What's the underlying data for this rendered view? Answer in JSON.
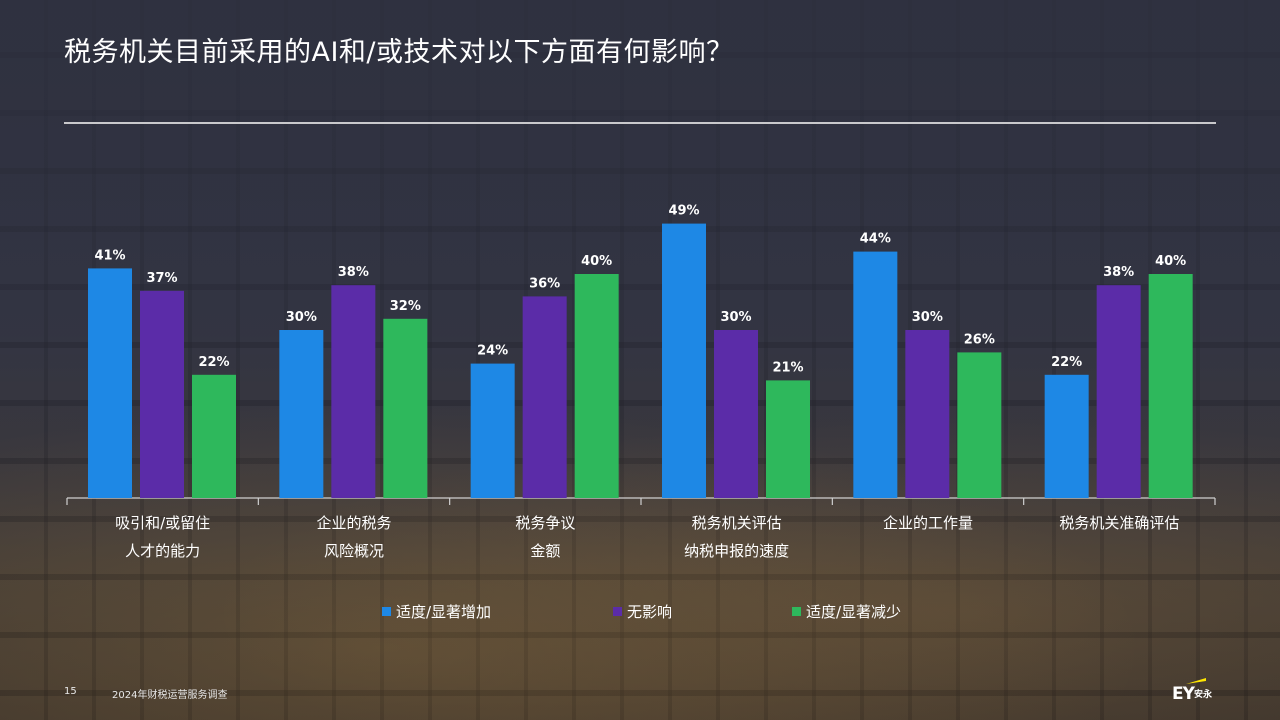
{
  "slide": {
    "title": "税务机关目前采用的AI和/或技术对以下方面有何影响？",
    "page_number": "15",
    "footer_text": "2024年财税运营服务调查",
    "logo_text": "EY",
    "logo_subtext": "安永"
  },
  "colors": {
    "increase": "#1e88e5",
    "no_effect": "#5b2ca8",
    "decrease": "#2eb85c",
    "logo_accent": "#ffe600"
  },
  "chart_data": {
    "type": "bar",
    "categories": [
      [
        "吸引和/或留住",
        "人才的能力"
      ],
      [
        "企业的税务",
        "风险概况"
      ],
      [
        "税务争议",
        "金额"
      ],
      [
        "税务机关评估",
        "纳税申报的速度"
      ],
      [
        "企业的工作量"
      ],
      [
        "税务机关准确评估"
      ]
    ],
    "series": [
      {
        "name": "适度/显著增加",
        "color": "#1e88e5",
        "values": [
          41,
          30,
          24,
          49,
          44,
          22
        ]
      },
      {
        "name": "无影响",
        "color": "#5b2ca8",
        "values": [
          37,
          38,
          36,
          30,
          30,
          38
        ]
      },
      {
        "name": "适度/显著减少",
        "color": "#2eb85c",
        "values": [
          22,
          32,
          40,
          21,
          26,
          40
        ]
      }
    ],
    "value_suffix": "%",
    "ylim": [
      0,
      50
    ],
    "grid": false,
    "legend_position": "bottom"
  }
}
